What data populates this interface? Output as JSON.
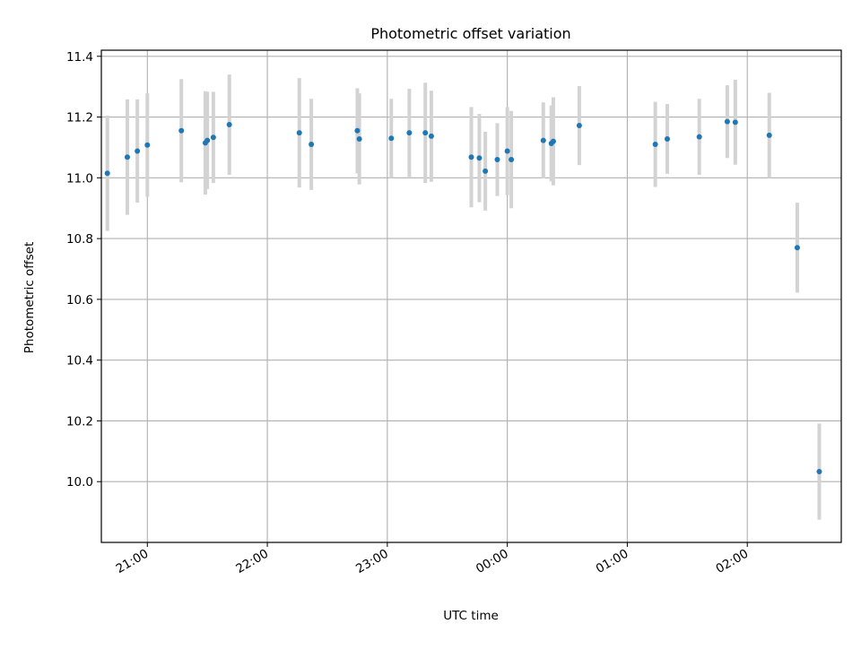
{
  "chart_data": {
    "type": "scatter",
    "title": "Photometric offset variation",
    "xlabel": "UTC time",
    "ylabel": "Photometric offset",
    "grid": true,
    "xlim": [
      "20:37",
      "02:47"
    ],
    "ylim": [
      9.8,
      11.42
    ],
    "x_ticks": [
      "21:00",
      "22:00",
      "23:00",
      "00:00",
      "01:00",
      "02:00"
    ],
    "y_ticks": [
      "10.0",
      "10.2",
      "10.4",
      "10.6",
      "10.8",
      "11.0",
      "11.2",
      "11.4"
    ],
    "series": [
      {
        "colors": {
          "point": "#1f77b4",
          "errorbar": "#d3d3d3"
        },
        "points": [
          {
            "x": "20:40",
            "y": 11.015,
            "err": 0.19
          },
          {
            "x": "20:50",
            "y": 11.068,
            "err": 0.19
          },
          {
            "x": "20:55",
            "y": 11.088,
            "err": 0.17
          },
          {
            "x": "21:00",
            "y": 11.108,
            "err": 0.17
          },
          {
            "x": "21:17",
            "y": 11.155,
            "err": 0.17
          },
          {
            "x": "21:29",
            "y": 11.115,
            "err": 0.17
          },
          {
            "x": "21:30",
            "y": 11.123,
            "err": 0.16
          },
          {
            "x": "21:33",
            "y": 11.133,
            "err": 0.15
          },
          {
            "x": "21:41",
            "y": 11.175,
            "err": 0.165
          },
          {
            "x": "22:16",
            "y": 11.148,
            "err": 0.18
          },
          {
            "x": "22:22",
            "y": 11.11,
            "err": 0.15
          },
          {
            "x": "22:45",
            "y": 11.155,
            "err": 0.14
          },
          {
            "x": "22:46",
            "y": 11.128,
            "err": 0.15
          },
          {
            "x": "23:02",
            "y": 11.13,
            "err": 0.13
          },
          {
            "x": "23:11",
            "y": 11.148,
            "err": 0.145
          },
          {
            "x": "23:19",
            "y": 11.148,
            "err": 0.165
          },
          {
            "x": "23:22",
            "y": 11.137,
            "err": 0.15
          },
          {
            "x": "23:42",
            "y": 11.068,
            "err": 0.165
          },
          {
            "x": "23:46",
            "y": 11.065,
            "err": 0.145
          },
          {
            "x": "23:49",
            "y": 11.022,
            "err": 0.13
          },
          {
            "x": "23:55",
            "y": 11.06,
            "err": 0.12
          },
          {
            "x": "00:00",
            "y": 11.088,
            "err": 0.145
          },
          {
            "x": "00:02",
            "y": 11.06,
            "err": 0.16
          },
          {
            "x": "00:18",
            "y": 11.123,
            "err": 0.125
          },
          {
            "x": "00:22",
            "y": 11.113,
            "err": 0.125
          },
          {
            "x": "00:23",
            "y": 11.12,
            "err": 0.145
          },
          {
            "x": "00:36",
            "y": 11.172,
            "err": 0.13
          },
          {
            "x": "01:14",
            "y": 11.11,
            "err": 0.14
          },
          {
            "x": "01:20",
            "y": 11.128,
            "err": 0.115
          },
          {
            "x": "01:36",
            "y": 11.135,
            "err": 0.125
          },
          {
            "x": "01:50",
            "y": 11.185,
            "err": 0.12
          },
          {
            "x": "01:54",
            "y": 11.183,
            "err": 0.14
          },
          {
            "x": "02:11",
            "y": 11.14,
            "err": 0.14
          },
          {
            "x": "02:25",
            "y": 10.77,
            "err": 0.148
          },
          {
            "x": "02:36",
            "y": 10.033,
            "err": 0.158
          }
        ]
      }
    ]
  }
}
